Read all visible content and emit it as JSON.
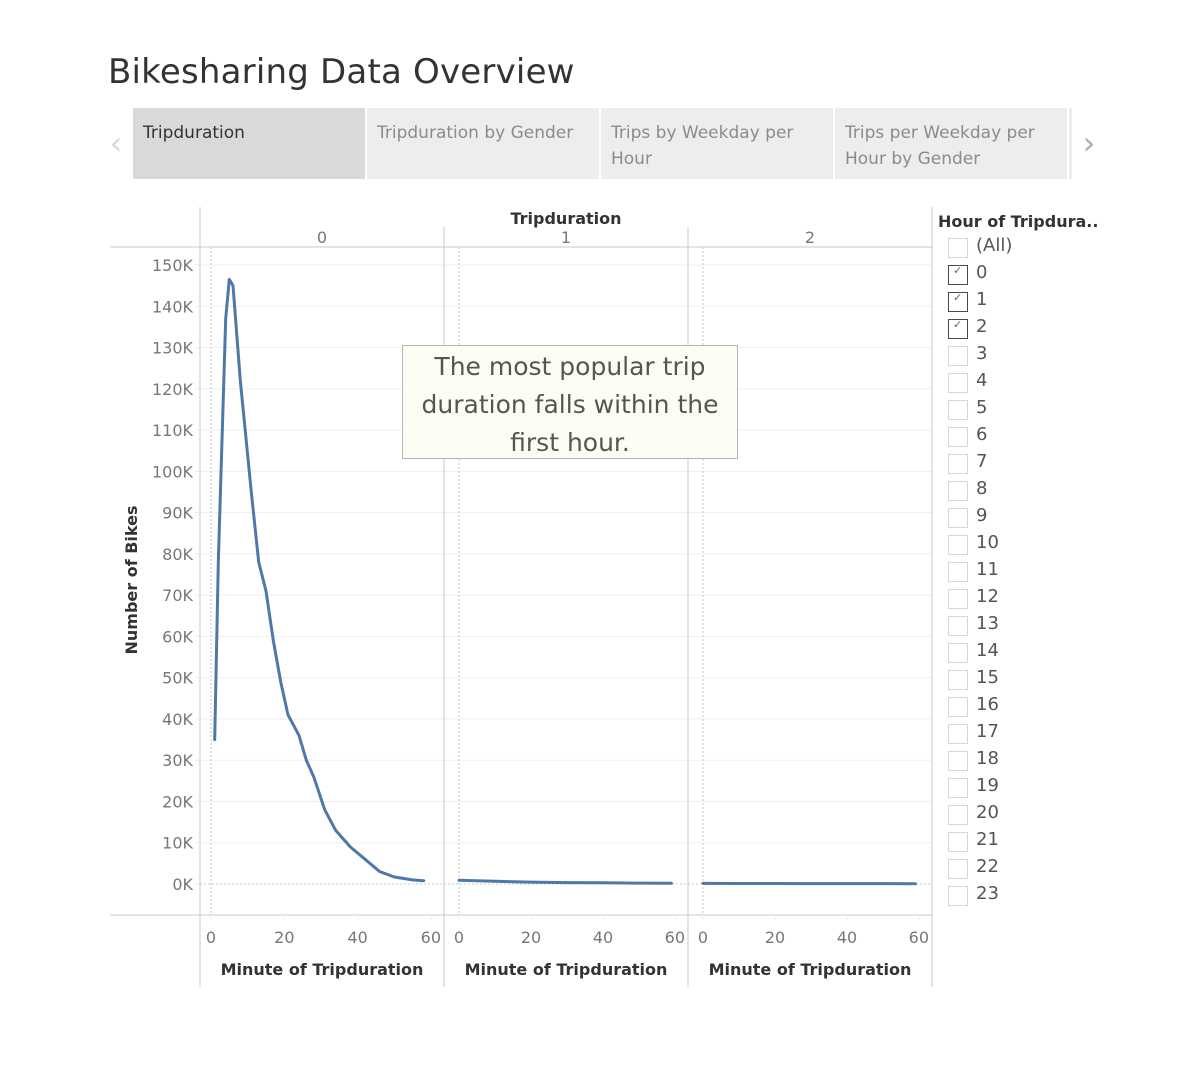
{
  "dashboard": {
    "title": "Bikesharing Data Overview"
  },
  "tabs": {
    "prev_icon": "chevron-left-icon",
    "next_icon": "chevron-right-icon",
    "items": [
      {
        "label": "Tripduration",
        "active": true
      },
      {
        "label": "Tripduration by Gender",
        "active": false
      },
      {
        "label": "Trips by Weekday per Hour",
        "active": false
      },
      {
        "label": "Trips per Weekday per Hour by Gender",
        "active": false
      }
    ]
  },
  "annotation": {
    "text": "The most popular trip duration falls within the first hour."
  },
  "filter": {
    "title": "Hour of Tripdura..",
    "items": [
      {
        "label": "(All)",
        "checked": false
      },
      {
        "label": "0",
        "checked": true
      },
      {
        "label": "1",
        "checked": true
      },
      {
        "label": "2",
        "checked": true
      },
      {
        "label": "3",
        "checked": false
      },
      {
        "label": "4",
        "checked": false
      },
      {
        "label": "5",
        "checked": false
      },
      {
        "label": "6",
        "checked": false
      },
      {
        "label": "7",
        "checked": false
      },
      {
        "label": "8",
        "checked": false
      },
      {
        "label": "9",
        "checked": false
      },
      {
        "label": "10",
        "checked": false
      },
      {
        "label": "11",
        "checked": false
      },
      {
        "label": "12",
        "checked": false
      },
      {
        "label": "13",
        "checked": false
      },
      {
        "label": "14",
        "checked": false
      },
      {
        "label": "15",
        "checked": false
      },
      {
        "label": "16",
        "checked": false
      },
      {
        "label": "17",
        "checked": false
      },
      {
        "label": "18",
        "checked": false
      },
      {
        "label": "19",
        "checked": false
      },
      {
        "label": "20",
        "checked": false
      },
      {
        "label": "21",
        "checked": false
      },
      {
        "label": "22",
        "checked": false
      },
      {
        "label": "23",
        "checked": false
      }
    ]
  },
  "colors": {
    "line": "#4e79a7",
    "grid": "#efefef",
    "axis": "#c8c8c8",
    "annotation_bg": "#fdfdf3"
  },
  "chart_data": {
    "type": "line",
    "title": "Tripduration",
    "column_header": "Tripduration",
    "xlabel": "Minute of Tripduration",
    "ylabel": "Number of Bikes",
    "ylim": [
      0,
      150000
    ],
    "y_ticks": [
      "0K",
      "10K",
      "20K",
      "30K",
      "40K",
      "50K",
      "60K",
      "70K",
      "80K",
      "90K",
      "100K",
      "110K",
      "120K",
      "130K",
      "140K",
      "150K"
    ],
    "x_ticks": [
      "0",
      "20",
      "40",
      "60"
    ],
    "grid": true,
    "panels": [
      {
        "name": "0",
        "x": [
          1,
          2,
          4,
          5,
          6,
          8,
          11,
          13,
          15,
          17,
          19,
          21,
          24,
          26,
          28,
          31,
          34,
          38,
          42,
          46,
          50,
          55,
          58
        ],
        "values": [
          35000,
          78000,
          137000,
          146500,
          145000,
          122000,
          95000,
          78000,
          71000,
          59000,
          49000,
          41000,
          36000,
          30000,
          26000,
          18000,
          13000,
          9000,
          6000,
          3000,
          1700,
          1000,
          800
        ]
      },
      {
        "name": "1",
        "x": [
          0,
          10,
          20,
          30,
          40,
          50,
          59
        ],
        "values": [
          900,
          650,
          450,
          350,
          280,
          220,
          180
        ]
      },
      {
        "name": "2",
        "x": [
          0,
          10,
          20,
          30,
          40,
          50,
          59
        ],
        "values": [
          150,
          130,
          110,
          100,
          90,
          85,
          80
        ]
      }
    ]
  }
}
